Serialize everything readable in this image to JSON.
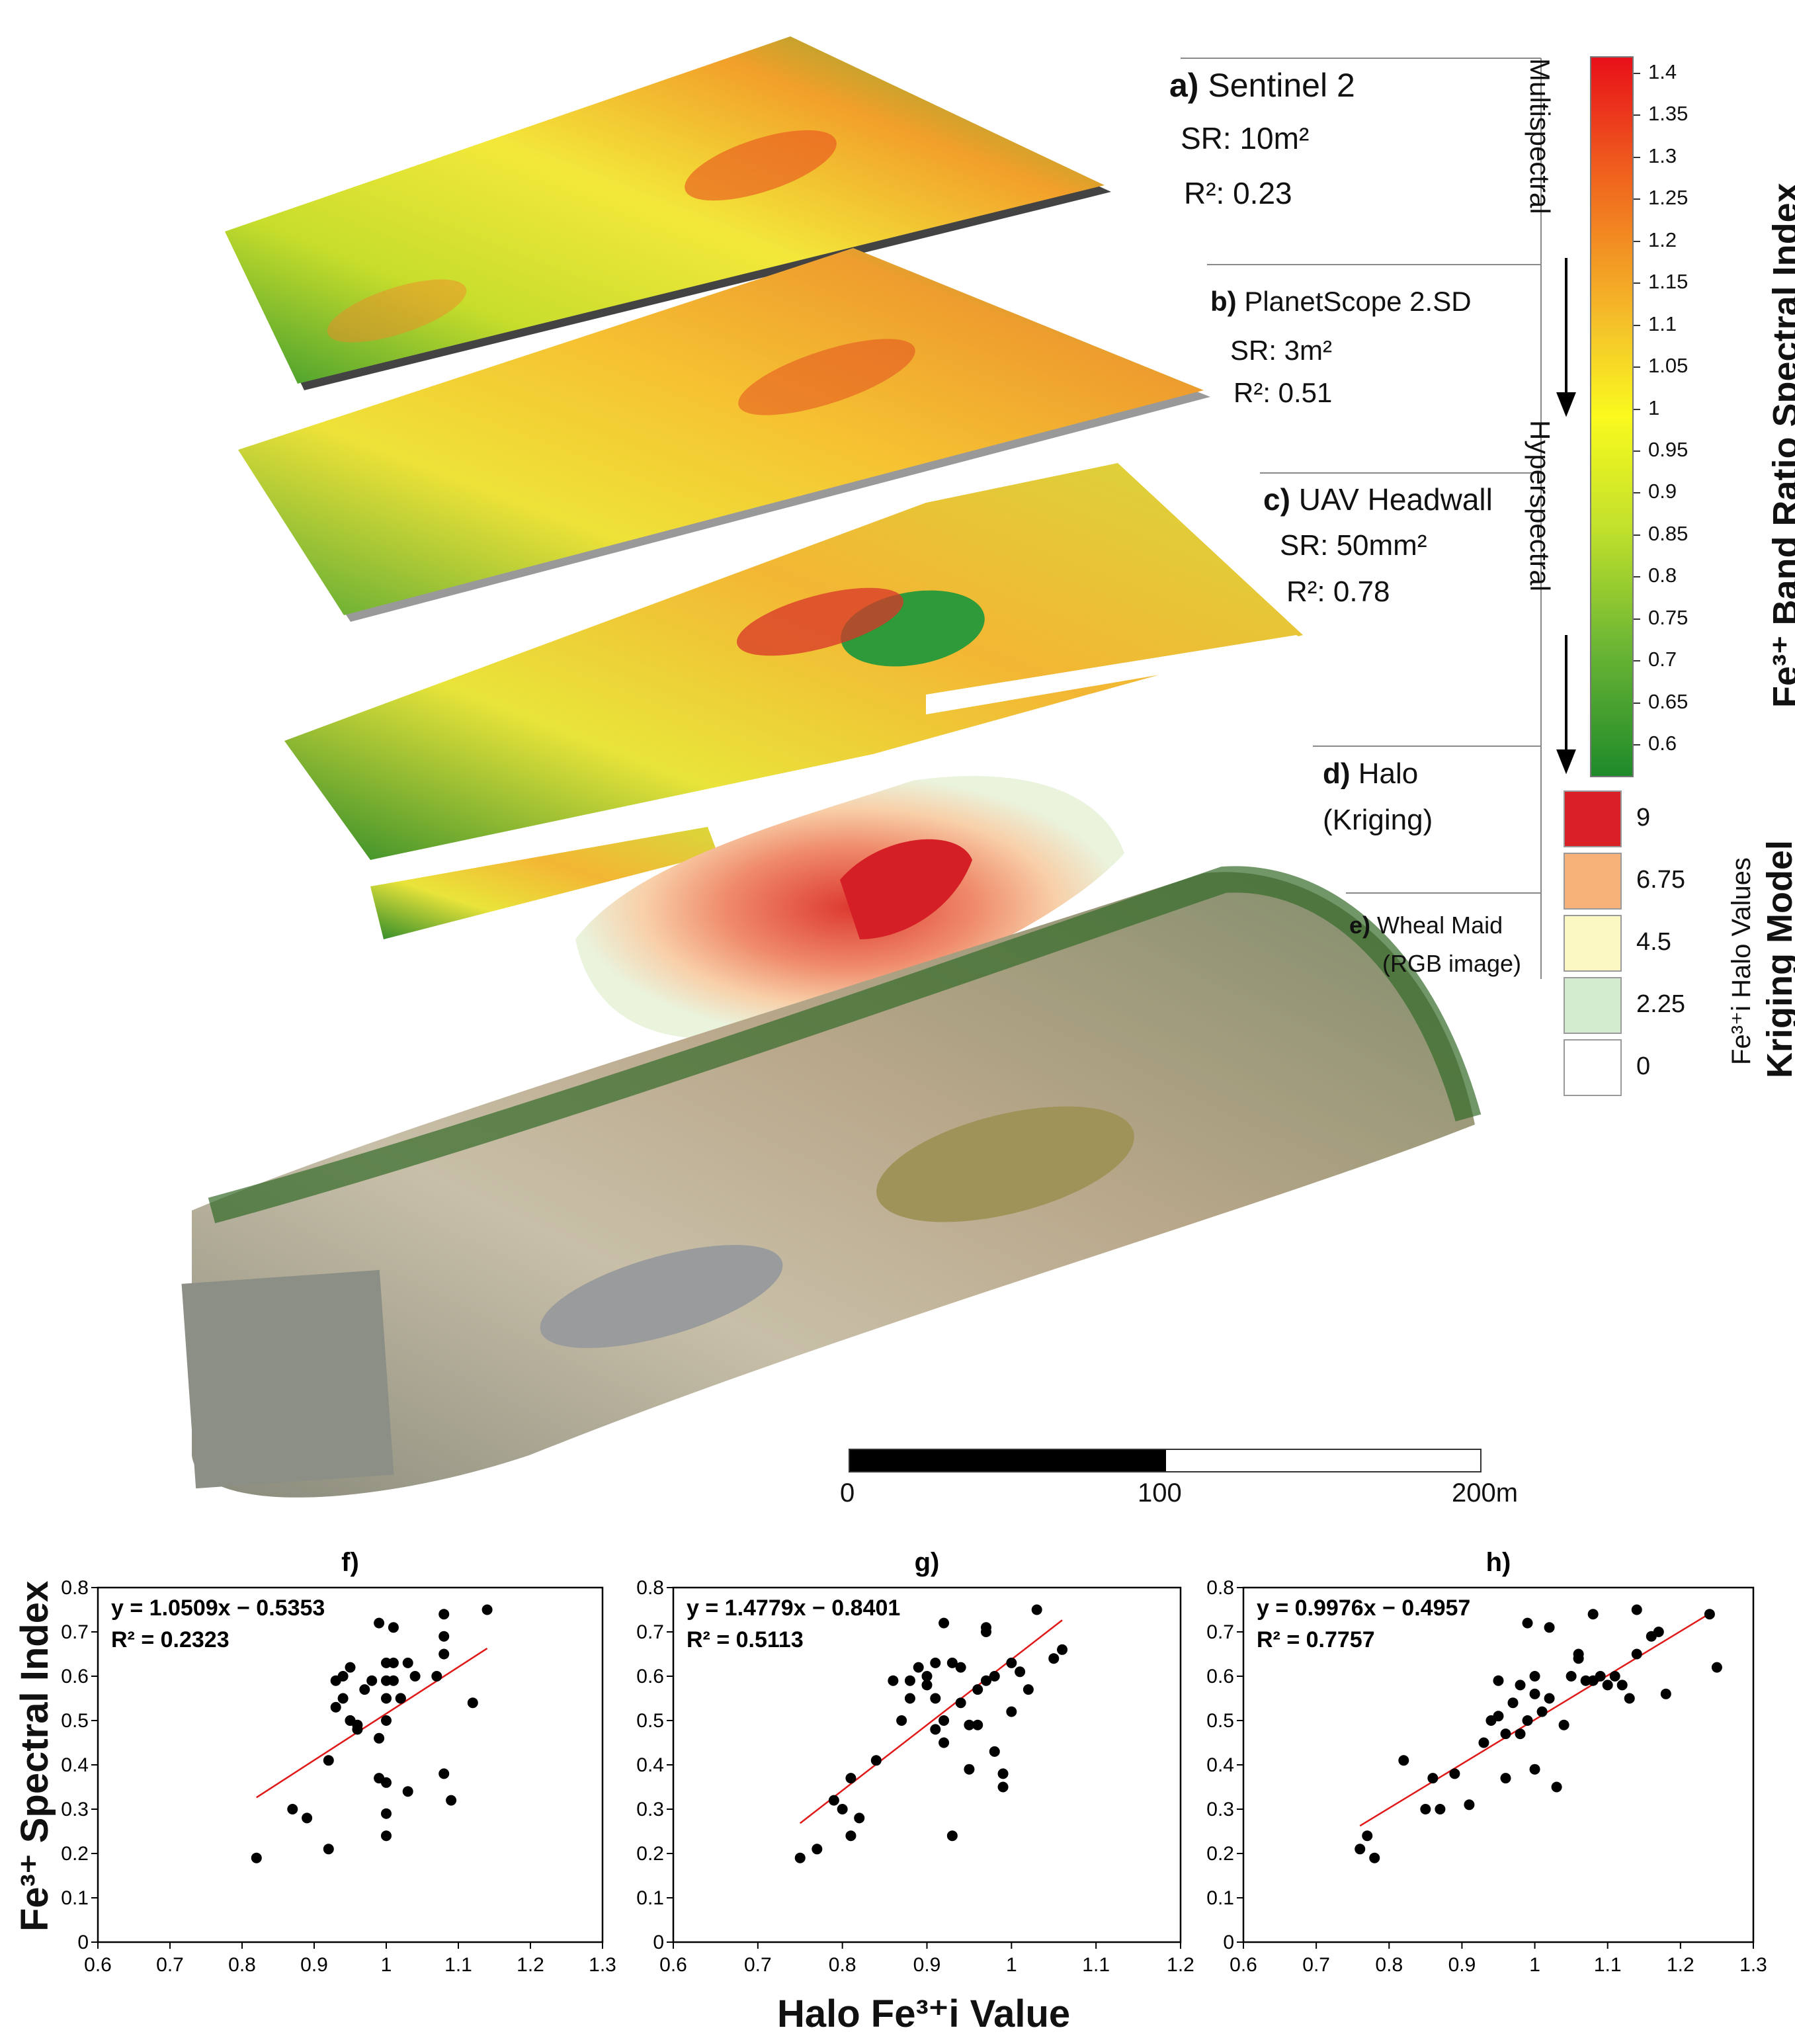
{
  "maps": {
    "a": {
      "letter": "a)",
      "name": "Sentinel 2",
      "sr": "SR: 10m²",
      "r2": "R²: 0.23"
    },
    "b": {
      "letter": "b)",
      "name": "PlanetScope 2.SD",
      "sr": "SR: 3m²",
      "r2": "R²: 0.51"
    },
    "c": {
      "letter": "c)",
      "name": "UAV Headwall",
      "sr": "SR: 50mm²",
      "r2": "R²: 0.78"
    },
    "d": {
      "letter": "d)",
      "name": "Halo",
      "sub": "(Kriging)"
    },
    "e": {
      "letter": "e)",
      "name": "Wheal Maid",
      "sub": "(RGB image)"
    }
  },
  "arrows": {
    "multispectral": "Multispectral",
    "hyperspectral": "Hyperspectral"
  },
  "colorbar": {
    "title": "Fe³⁺ Band Ratio Spectral Index",
    "ticks": [
      "1.4",
      "1.35",
      "1.3",
      "1.25",
      "1.2",
      "1.15",
      "1.1",
      "1.05",
      "1",
      "0.95",
      "0.9",
      "0.85",
      "0.8",
      "0.75",
      "0.7",
      "0.65",
      "0.6"
    ],
    "colors": {
      "high": "#e8101a",
      "mid": "#fafa1e",
      "low": "#1f8a2a"
    }
  },
  "kriging": {
    "title": "Kriging Model",
    "subtitle": "Fe³⁺i Halo Values",
    "classes": [
      {
        "value": "9",
        "color": "#d92027"
      },
      {
        "value": "6.75",
        "color": "#f7b27a"
      },
      {
        "value": "4.5",
        "color": "#fcf8c4"
      },
      {
        "value": "2.25",
        "color": "#d3ebcf"
      },
      {
        "value": "0",
        "color": "#ffffff"
      }
    ]
  },
  "scalebar": {
    "labels": [
      "0",
      "100",
      "200m"
    ]
  },
  "shared_axes": {
    "ylabel": "Fe³⁺ Spectral Index",
    "xlabel": "Halo Fe³⁺i Value"
  },
  "chart_data": [
    {
      "type": "scatter",
      "panel": "f)",
      "equation": "y = 1.0509x − 0.5353",
      "r2": "R² = 0.2323",
      "xlim": [
        0.6,
        1.3
      ],
      "ylim": [
        0,
        0.8
      ],
      "xticks": [
        "0.6",
        "0.7",
        "0.8",
        "0.9",
        "1",
        "1.1",
        "1.2",
        "1.3"
      ],
      "yticks": [
        "0",
        "0.1",
        "0.2",
        "0.3",
        "0.4",
        "0.5",
        "0.6",
        "0.7",
        "0.8"
      ],
      "trend": {
        "slope": 1.0509,
        "intercept": -0.5353,
        "x_range": [
          0.82,
          1.14
        ]
      },
      "x": [
        0.82,
        0.87,
        0.89,
        0.92,
        0.92,
        0.93,
        0.93,
        0.94,
        0.94,
        0.95,
        0.95,
        0.95,
        0.96,
        0.96,
        0.97,
        0.98,
        0.99,
        0.99,
        0.99,
        1.0,
        1.0,
        1.0,
        1.0,
        1.0,
        1.0,
        1.0,
        1.01,
        1.01,
        1.01,
        1.02,
        1.02,
        1.03,
        1.03,
        1.04,
        1.07,
        1.08,
        1.08,
        1.08,
        1.08,
        1.09,
        1.12,
        1.14
      ],
      "y": [
        0.19,
        0.3,
        0.28,
        0.21,
        0.41,
        0.59,
        0.53,
        0.6,
        0.55,
        0.5,
        0.5,
        0.62,
        0.49,
        0.48,
        0.57,
        0.59,
        0.37,
        0.72,
        0.46,
        0.59,
        0.63,
        0.55,
        0.5,
        0.36,
        0.29,
        0.24,
        0.71,
        0.63,
        0.59,
        0.55,
        0.55,
        0.34,
        0.63,
        0.6,
        0.6,
        0.74,
        0.69,
        0.38,
        0.65,
        0.32,
        0.54,
        0.75
      ]
    },
    {
      "type": "scatter",
      "panel": "g)",
      "equation": "y = 1.4779x − 0.8401",
      "r2": "R² = 0.5113",
      "xlim": [
        0.6,
        1.2
      ],
      "ylim": [
        0,
        0.8
      ],
      "xticks": [
        "0.6",
        "0.7",
        "0.8",
        "0.9",
        "1",
        "1.1",
        "1.2"
      ],
      "yticks": [
        "0",
        "0.1",
        "0.2",
        "0.3",
        "0.4",
        "0.5",
        "0.6",
        "0.7",
        "0.8"
      ],
      "trend": {
        "slope": 1.4779,
        "intercept": -0.8401,
        "x_range": [
          0.75,
          1.06
        ]
      },
      "x": [
        0.75,
        0.77,
        0.79,
        0.8,
        0.81,
        0.81,
        0.82,
        0.84,
        0.86,
        0.87,
        0.88,
        0.88,
        0.89,
        0.9,
        0.9,
        0.91,
        0.91,
        0.91,
        0.92,
        0.92,
        0.92,
        0.93,
        0.93,
        0.94,
        0.94,
        0.95,
        0.95,
        0.96,
        0.96,
        0.97,
        0.97,
        0.97,
        0.98,
        0.98,
        0.99,
        0.99,
        1.0,
        1.0,
        1.01,
        1.02,
        1.03,
        1.05,
        1.06
      ],
      "y": [
        0.19,
        0.21,
        0.32,
        0.3,
        0.24,
        0.37,
        0.28,
        0.41,
        0.59,
        0.5,
        0.59,
        0.55,
        0.62,
        0.58,
        0.6,
        0.48,
        0.63,
        0.55,
        0.5,
        0.45,
        0.72,
        0.63,
        0.24,
        0.62,
        0.54,
        0.49,
        0.39,
        0.57,
        0.49,
        0.7,
        0.71,
        0.59,
        0.43,
        0.6,
        0.38,
        0.35,
        0.63,
        0.52,
        0.61,
        0.57,
        0.75,
        0.64,
        0.66
      ]
    },
    {
      "type": "scatter",
      "panel": "h)",
      "equation": "y = 0.9976x − 0.4957",
      "r2": "R² = 0.7757",
      "xlim": [
        0.6,
        1.3
      ],
      "ylim": [
        0,
        0.8
      ],
      "xticks": [
        "0.6",
        "0.7",
        "0.8",
        "0.9",
        "1",
        "1.1",
        "1.2",
        "1.3"
      ],
      "yticks": [
        "0",
        "0.1",
        "0.2",
        "0.3",
        "0.4",
        "0.5",
        "0.6",
        "0.7",
        "0.8"
      ],
      "trend": {
        "slope": 0.9976,
        "intercept": -0.4957,
        "x_range": [
          0.76,
          1.24
        ]
      },
      "x": [
        0.76,
        0.77,
        0.78,
        0.82,
        0.85,
        0.86,
        0.87,
        0.89,
        0.91,
        0.93,
        0.94,
        0.95,
        0.95,
        0.96,
        0.96,
        0.97,
        0.98,
        0.98,
        0.99,
        0.99,
        1.0,
        1.0,
        1.0,
        1.01,
        1.02,
        1.02,
        1.03,
        1.04,
        1.05,
        1.06,
        1.06,
        1.07,
        1.08,
        1.08,
        1.09,
        1.1,
        1.11,
        1.12,
        1.13,
        1.14,
        1.14,
        1.16,
        1.17,
        1.18,
        1.24,
        1.25
      ],
      "y": [
        0.21,
        0.24,
        0.19,
        0.41,
        0.3,
        0.37,
        0.3,
        0.38,
        0.31,
        0.45,
        0.5,
        0.51,
        0.59,
        0.47,
        0.37,
        0.54,
        0.47,
        0.58,
        0.5,
        0.72,
        0.39,
        0.56,
        0.6,
        0.52,
        0.71,
        0.55,
        0.35,
        0.49,
        0.6,
        0.65,
        0.64,
        0.59,
        0.74,
        0.59,
        0.6,
        0.58,
        0.6,
        0.58,
        0.55,
        0.75,
        0.65,
        0.69,
        0.7,
        0.56,
        0.74,
        0.62
      ]
    }
  ]
}
